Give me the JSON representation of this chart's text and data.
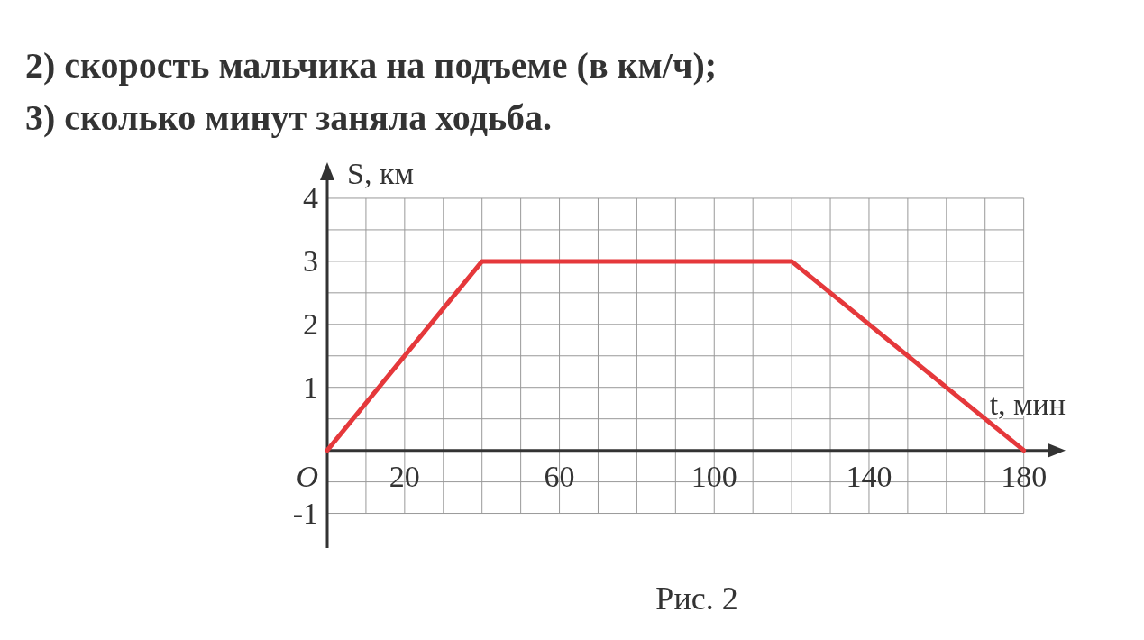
{
  "chart_data": {
    "type": "line",
    "title": "2) скорость мальчика на подъеме (в км/ч);",
    "subtitle": "3) сколько минут заняла ходьба.",
    "xlabel": "t, мин",
    "ylabel": "S, км",
    "annotations": [
      "Рис. 2",
      {
        "text": "O",
        "x": 0,
        "y": 0
      }
    ],
    "x": [
      0,
      40,
      120,
      180
    ],
    "series": [
      {
        "color": "#e5383b",
        "values": [
          0,
          3,
          3,
          0
        ]
      }
    ],
    "xlim": [
      0,
      188
    ],
    "ylim": [
      -1.55,
      4.4
    ],
    "xticks": [
      {
        "value": 0,
        "label": null
      },
      {
        "value": 10,
        "label": null
      },
      20,
      {
        "value": 30,
        "label": null
      },
      {
        "value": 40,
        "label": null
      },
      {
        "value": 50,
        "label": null
      },
      60,
      {
        "value": 70,
        "label": null
      },
      {
        "value": 80,
        "label": null
      },
      {
        "value": 90,
        "label": null
      },
      100,
      {
        "value": 110,
        "label": null
      },
      {
        "value": 120,
        "label": null
      },
      {
        "value": 130,
        "label": null
      },
      140,
      {
        "value": 150,
        "label": null
      },
      {
        "value": 160,
        "label": null
      },
      {
        "value": 170,
        "label": null
      },
      180
    ],
    "yticks": [
      -1,
      {
        "value": -0.5,
        "label": null
      },
      {
        "value": 0.5,
        "label": null
      },
      1,
      {
        "value": 1.5,
        "label": null
      },
      2,
      {
        "value": 2.5,
        "label": null
      },
      3,
      {
        "value": 3.5,
        "label": null
      },
      4
    ],
    "grid": true,
    "marker": "none",
    "line_style": "solid"
  }
}
